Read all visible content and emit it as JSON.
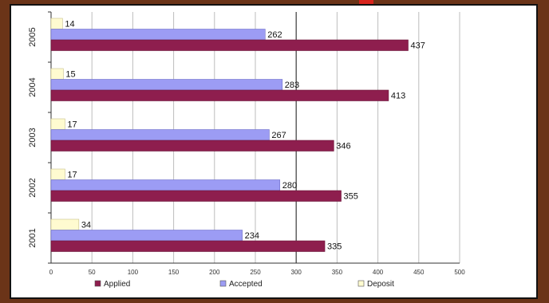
{
  "chart_data": {
    "type": "bar",
    "orientation": "horizontal",
    "categories": [
      "2005",
      "2004",
      "2003",
      "2002",
      "2001"
    ],
    "series": [
      {
        "name": "Deposit",
        "color": "#fffbd0",
        "values": [
          14,
          15,
          17,
          17,
          34
        ]
      },
      {
        "name": "Accepted",
        "color": "#9c9cf4",
        "values": [
          262,
          283,
          267,
          280,
          234
        ]
      },
      {
        "name": "Applied",
        "color": "#8e1e4e",
        "values": [
          437,
          413,
          346,
          355,
          335
        ]
      }
    ],
    "xlim": [
      0,
      500
    ],
    "xticks": [
      "0",
      "50",
      "100",
      "150",
      "200",
      "250",
      "300",
      "350",
      "400",
      "450",
      "500"
    ],
    "grid": "vertical",
    "legend": {
      "placement": "bottom",
      "entries": [
        {
          "label": "Applied",
          "color": "#8e1e4e"
        },
        {
          "label": "Accepted",
          "color": "#9c9cf4"
        },
        {
          "label": "Deposit",
          "color": "#fffbd0"
        }
      ]
    },
    "title": "",
    "xlabel": "",
    "ylabel": ""
  }
}
